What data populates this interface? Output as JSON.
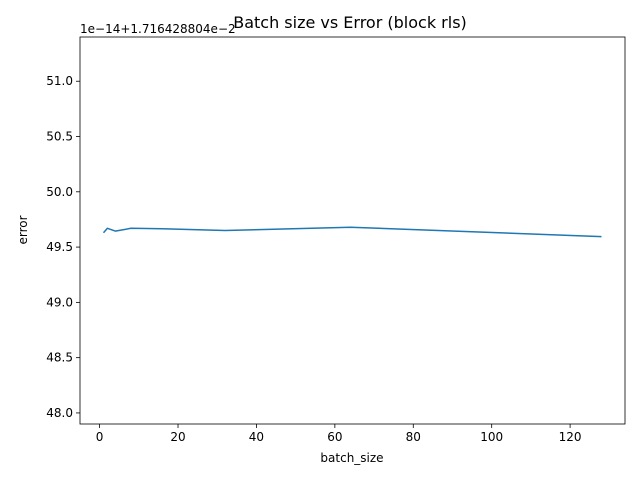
{
  "chart_data": {
    "type": "line",
    "title": "Batch size vs Error (block rls)",
    "xlabel": "batch_size",
    "ylabel": "error",
    "offset_label": "1e−14+1.716428804e−2",
    "xlim": [
      -5,
      134
    ],
    "ylim": [
      47.9,
      51.4
    ],
    "x_ticks": [
      0,
      20,
      40,
      60,
      80,
      100,
      120
    ],
    "x_tick_labels": [
      "0",
      "20",
      "40",
      "60",
      "80",
      "100",
      "120"
    ],
    "y_ticks": [
      48.0,
      48.5,
      49.0,
      49.5,
      50.0,
      50.5,
      51.0
    ],
    "y_tick_labels": [
      "48.0",
      "48.5",
      "49.0",
      "49.5",
      "50.0",
      "50.5",
      "51.0"
    ],
    "grid": false,
    "series": [
      {
        "x": [
          1,
          2,
          4,
          8,
          16,
          32,
          64,
          128
        ],
        "values": [
          49.63,
          49.67,
          49.645,
          49.67,
          49.665,
          49.65,
          49.68,
          49.595
        ],
        "color": "#1f77b4"
      }
    ]
  }
}
